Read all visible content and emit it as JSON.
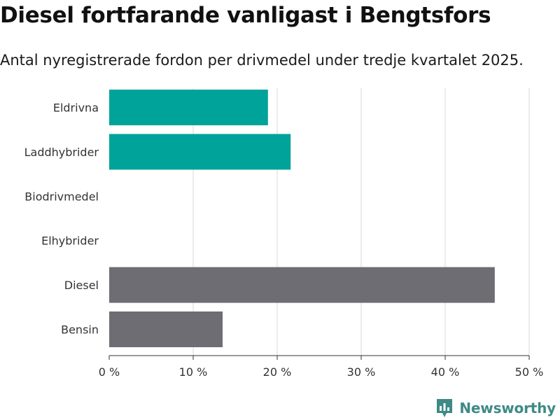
{
  "title": "Diesel fortfarande vanligast i Bengtsfors",
  "subtitle": "Antal nyregistrerade fordon per drivmedel under tredje kvartalet 2025.",
  "brand": {
    "name": "Newsworthy",
    "icon": "newsworthy-logo-icon",
    "color": "#3e8a86"
  },
  "colors": {
    "highlight": "#00a39a",
    "default": "#6d6d73",
    "grid": "#d9d9d9",
    "axis": "#333333"
  },
  "chart_data": {
    "type": "bar",
    "orientation": "horizontal",
    "title": "Diesel fortfarande vanligast i Bengtsfors",
    "subtitle": "Antal nyregistrerade fordon per drivmedel under tredje kvartalet 2025.",
    "categories": [
      "Eldrivna",
      "Laddhybrider",
      "Biodrivmedel",
      "Elhybrider",
      "Diesel",
      "Bensin"
    ],
    "values": [
      18.9,
      21.6,
      0,
      0,
      45.9,
      13.5
    ],
    "value_unit": "%",
    "highlight": [
      true,
      true,
      false,
      false,
      false,
      false
    ],
    "xlim": [
      0,
      50
    ],
    "xticks": [
      0,
      10,
      20,
      30,
      40,
      50
    ],
    "xtick_labels": [
      "0 %",
      "10 %",
      "20 %",
      "30 %",
      "40 %",
      "50 %"
    ],
    "xlabel": "",
    "ylabel": "",
    "grid": true,
    "legend": "none"
  }
}
